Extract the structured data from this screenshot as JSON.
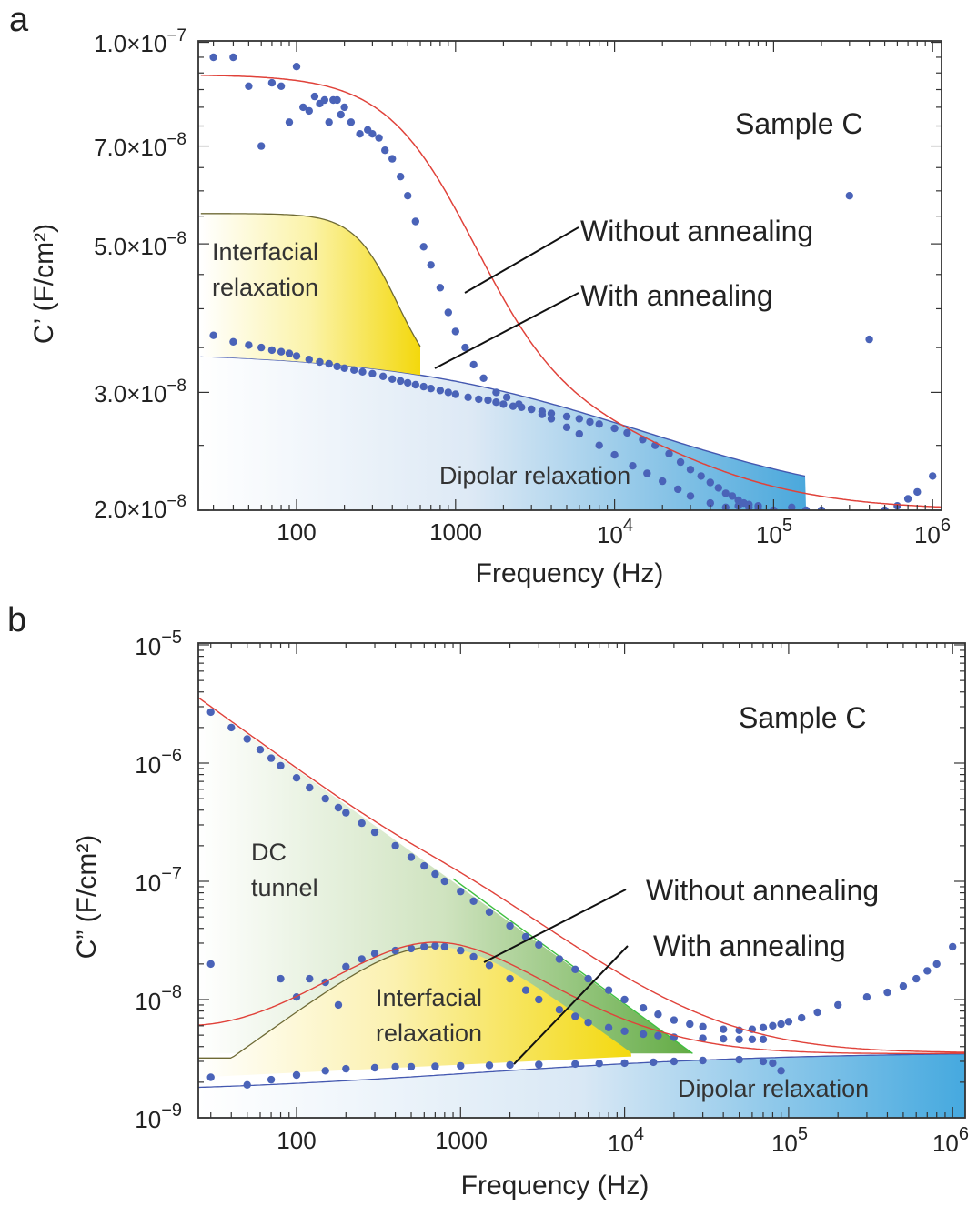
{
  "colors": {
    "points": "#4a63b8",
    "fit_without": "#e0423a",
    "fit_with": "#4458b0",
    "interfacial": "#f5e02a",
    "dipolar": "#5ab6e3",
    "dc_tunnel": "#6aa84f",
    "dc_edge": "#3fbf3f"
  },
  "chart_data": [
    {
      "panel": "a",
      "type": "scatter",
      "xlabel": "Frequency (Hz)",
      "ylabel": "C’ (F/cm²)",
      "xscale": "log",
      "yscale": "log",
      "xlim": [
        25,
        1200000
      ],
      "ylim": [
        2e-08,
        1.02e-07
      ],
      "x_tick_labels": [
        {
          "value": 100,
          "base": "100",
          "exp": ""
        },
        {
          "value": 1000,
          "base": "1000",
          "exp": ""
        },
        {
          "value": 10000,
          "base": "10",
          "exp": "4"
        },
        {
          "value": 100000,
          "base": "10",
          "exp": "5"
        },
        {
          "value": 1000000,
          "base": "10",
          "exp": "6"
        }
      ],
      "y_tick_labels": [
        {
          "value": 1e-07,
          "base": "1.0×10",
          "exp": "−7"
        },
        {
          "value": 7e-08,
          "base": "7.0×10",
          "exp": "−8"
        },
        {
          "value": 5e-08,
          "base": "5.0×10",
          "exp": "−8"
        },
        {
          "value": 3e-08,
          "base": "3.0×10",
          "exp": "−8"
        },
        {
          "value": 2e-08,
          "base": "2.0×10",
          "exp": "−8"
        }
      ],
      "annotations": {
        "sample": "Sample C",
        "without": "Without annealing",
        "with": "With annealing",
        "interfacial": [
          "Interfacial",
          "relaxation"
        ],
        "dipolar": "Dipolar relaxation"
      },
      "series": [
        {
          "x": [
            30,
            40,
            50,
            60,
            70,
            80,
            90,
            100,
            110,
            120,
            130,
            140,
            150,
            160,
            170,
            180,
            190,
            200,
            220,
            250,
            280,
            300,
            330,
            360,
            400,
            450,
            500,
            560,
            630,
            700,
            800,
            900,
            1000,
            1150,
            1300,
            1500,
            1800,
            2100,
            2500,
            3000,
            3500,
            4000,
            5000,
            6000,
            8000,
            10000,
            13000,
            16000,
            20000,
            25000,
            30000,
            40000,
            50000,
            60000,
            70000,
            80000,
            100000,
            130000,
            160000,
            200000,
            300000,
            400000,
            500000,
            600000,
            700000,
            800000,
            1000000
          ],
          "y": [
            9.5e-08,
            9.5e-08,
            8.6e-08,
            7e-08,
            8.7e-08,
            8.6e-08,
            7.6e-08,
            9.2e-08,
            8e-08,
            7.9e-08,
            8.3e-08,
            8.1e-08,
            8.2e-08,
            7.6e-08,
            8.2e-08,
            8.2e-08,
            7.8e-08,
            8e-08,
            7.6e-08,
            7.3e-08,
            7.4e-08,
            7.3e-08,
            7.2e-08,
            6.9e-08,
            6.7e-08,
            6.3e-08,
            5.9e-08,
            5.4e-08,
            4.95e-08,
            4.65e-08,
            4.3e-08,
            3.95e-08,
            3.7e-08,
            3.5e-08,
            3.3e-08,
            3.15e-08,
            3e-08,
            2.95e-08,
            2.88e-08,
            2.83e-08,
            2.78e-08,
            2.74e-08,
            2.66e-08,
            2.6e-08,
            2.5e-08,
            2.42e-08,
            2.33e-08,
            2.27e-08,
            2.21e-08,
            2.15e-08,
            2.1e-08,
            2.05e-08,
            2.02e-08,
            2.03e-08,
            2.02e-08,
            2e-08,
            2e-08,
            2.02e-08,
            2e-08,
            2e-08,
            5.9e-08,
            3.6e-08,
            2e-08,
            2.03e-08,
            2.08e-08,
            2.13e-08,
            2.25e-08
          ]
        },
        {
          "x": [
            30,
            40,
            50,
            60,
            70,
            80,
            90,
            100,
            120,
            140,
            160,
            180,
            200,
            230,
            260,
            300,
            350,
            400,
            450,
            500,
            560,
            630,
            700,
            800,
            900,
            1000,
            1200,
            1400,
            1600,
            1800,
            2000,
            2300,
            2600,
            3000,
            3500,
            4000,
            5000,
            6000,
            7000,
            8000,
            10000,
            12000,
            15000,
            18000,
            22000,
            26000,
            30000,
            35000,
            40000,
            45000,
            50000,
            55000,
            60000,
            65000,
            70000,
            80000
          ],
          "y": [
            3.65e-08,
            3.57e-08,
            3.53e-08,
            3.5e-08,
            3.47e-08,
            3.45e-08,
            3.43e-08,
            3.4e-08,
            3.36e-08,
            3.33e-08,
            3.31e-08,
            3.28e-08,
            3.26e-08,
            3.24e-08,
            3.22e-08,
            3.2e-08,
            3.17e-08,
            3.14e-08,
            3.12e-08,
            3.1e-08,
            3.08e-08,
            3.06e-08,
            3.04e-08,
            3.02e-08,
            3e-08,
            2.98e-08,
            2.95e-08,
            2.93e-08,
            2.92e-08,
            2.9e-08,
            2.88e-08,
            2.86e-08,
            2.85e-08,
            2.83e-08,
            2.81e-08,
            2.79e-08,
            2.76e-08,
            2.74e-08,
            2.71e-08,
            2.69e-08,
            2.65e-08,
            2.61e-08,
            2.55e-08,
            2.5e-08,
            2.43e-08,
            2.36e-08,
            2.3e-08,
            2.25e-08,
            2.2e-08,
            2.16e-08,
            2.12e-08,
            2.1e-08,
            2.07e-08,
            2.05e-08,
            2.04e-08,
            2.03e-08
          ]
        }
      ]
    },
    {
      "panel": "b",
      "type": "scatter",
      "xlabel": "Frequency (Hz)",
      "ylabel": "C” (F/cm²)",
      "xscale": "log",
      "yscale": "log",
      "xlim": [
        25,
        1200000
      ],
      "ylim": [
        1e-09,
        1e-05
      ],
      "x_tick_labels": [
        {
          "value": 100,
          "base": "100",
          "exp": ""
        },
        {
          "value": 1000,
          "base": "1000",
          "exp": ""
        },
        {
          "value": 10000,
          "base": "10",
          "exp": "4"
        },
        {
          "value": 100000,
          "base": "10",
          "exp": "5"
        },
        {
          "value": 1000000,
          "base": "10",
          "exp": "6"
        }
      ],
      "y_tick_labels": [
        {
          "value": 1e-05,
          "base": "10",
          "exp": "−5"
        },
        {
          "value": 1e-06,
          "base": "10",
          "exp": "−6"
        },
        {
          "value": 1e-07,
          "base": "10",
          "exp": "−7"
        },
        {
          "value": 1e-08,
          "base": "10",
          "exp": "−8"
        },
        {
          "value": 1e-09,
          "base": "10",
          "exp": "−9"
        }
      ],
      "annotations": {
        "sample": "Sample C",
        "without": "Without annealing",
        "with": "With annealing",
        "dc": [
          "DC",
          "tunnel"
        ],
        "interfacial": [
          "Interfacial",
          "relaxation"
        ],
        "dipolar": "Dipolar relaxation"
      },
      "series": [
        {
          "x": [
            30,
            40,
            50,
            60,
            70,
            80,
            100,
            120,
            150,
            180,
            200,
            250,
            300,
            400,
            500,
            600,
            700,
            800,
            1000,
            1200,
            1500,
            2000,
            2500,
            3000,
            4000,
            5000,
            6000,
            8000,
            10000,
            13000,
            16000,
            20000,
            25000,
            30000,
            40000,
            50000,
            60000,
            70000,
            80000,
            90000,
            100000,
            120000,
            150000,
            200000,
            300000,
            400000,
            500000,
            600000,
            700000,
            800000,
            1000000
          ],
          "y": [
            2.7e-06,
            2e-06,
            1.6e-06,
            1.3e-06,
            1.1e-06,
            9.5e-07,
            7.5e-07,
            6.2e-07,
            5e-07,
            4.2e-07,
            3.8e-07,
            3.1e-07,
            2.6e-07,
            2e-07,
            1.6e-07,
            1.35e-07,
            1.15e-07,
            1e-07,
            8.2e-08,
            6.8e-08,
            5.5e-08,
            4.2e-08,
            3.4e-08,
            2.9e-08,
            2.2e-08,
            1.8e-08,
            1.5e-08,
            1.2e-08,
            1e-08,
            8.5e-09,
            7.5e-09,
            6.7e-09,
            6.2e-09,
            5.9e-09,
            5.6e-09,
            5.5e-09,
            5.6e-09,
            5.8e-09,
            6e-09,
            6.2e-09,
            6.5e-09,
            7e-09,
            7.8e-09,
            9e-09,
            1.05e-08,
            1.15e-08,
            1.3e-08,
            1.5e-08,
            1.75e-08,
            2e-08,
            2.8e-08
          ]
        },
        {
          "x": [
            30,
            80,
            100,
            120,
            150,
            180,
            200,
            250,
            300,
            400,
            500,
            600,
            700,
            800,
            1000,
            1200,
            1500,
            2000,
            2500,
            3000,
            4000,
            5000,
            6000,
            8000,
            10000,
            13000,
            16000,
            20000,
            30000,
            40000,
            50000,
            60000,
            70000
          ],
          "y": [
            2e-08,
            1.5e-08,
            1.05e-08,
            1.5e-08,
            1.4e-08,
            9e-09,
            1.9e-08,
            2.2e-08,
            2.45e-08,
            2.6e-08,
            2.7e-08,
            2.8e-08,
            2.85e-08,
            2.8e-08,
            2.6e-08,
            2.3e-08,
            1.95e-08,
            1.5e-08,
            1.2e-08,
            1e-08,
            8.2e-09,
            7.2e-09,
            6.4e-09,
            5.8e-09,
            5.4e-09,
            5.1e-09,
            4.95e-09,
            4.8e-09,
            4.7e-09,
            4.65e-09,
            4.6e-09,
            4.6e-09,
            4.6e-09
          ]
        },
        {
          "x": [
            30,
            50,
            70,
            100,
            150,
            200,
            300,
            400,
            500,
            700,
            1000,
            1500,
            2000,
            3000,
            5000,
            7000,
            10000,
            15000,
            20000,
            30000,
            50000,
            70000,
            80000,
            90000,
            100000
          ],
          "y": [
            2.2e-09,
            1.9e-09,
            2.1e-09,
            2.3e-09,
            2.5e-09,
            2.6e-09,
            2.65e-09,
            2.7e-09,
            2.7e-09,
            2.72e-09,
            2.75e-09,
            2.78e-09,
            2.8e-09,
            2.82e-09,
            2.85e-09,
            2.88e-09,
            2.9e-09,
            2.95e-09,
            3e-09,
            3.05e-09,
            3.1e-09,
            3e-09,
            2.9e-09,
            2.5e-09,
            8e-10
          ]
        }
      ]
    }
  ]
}
